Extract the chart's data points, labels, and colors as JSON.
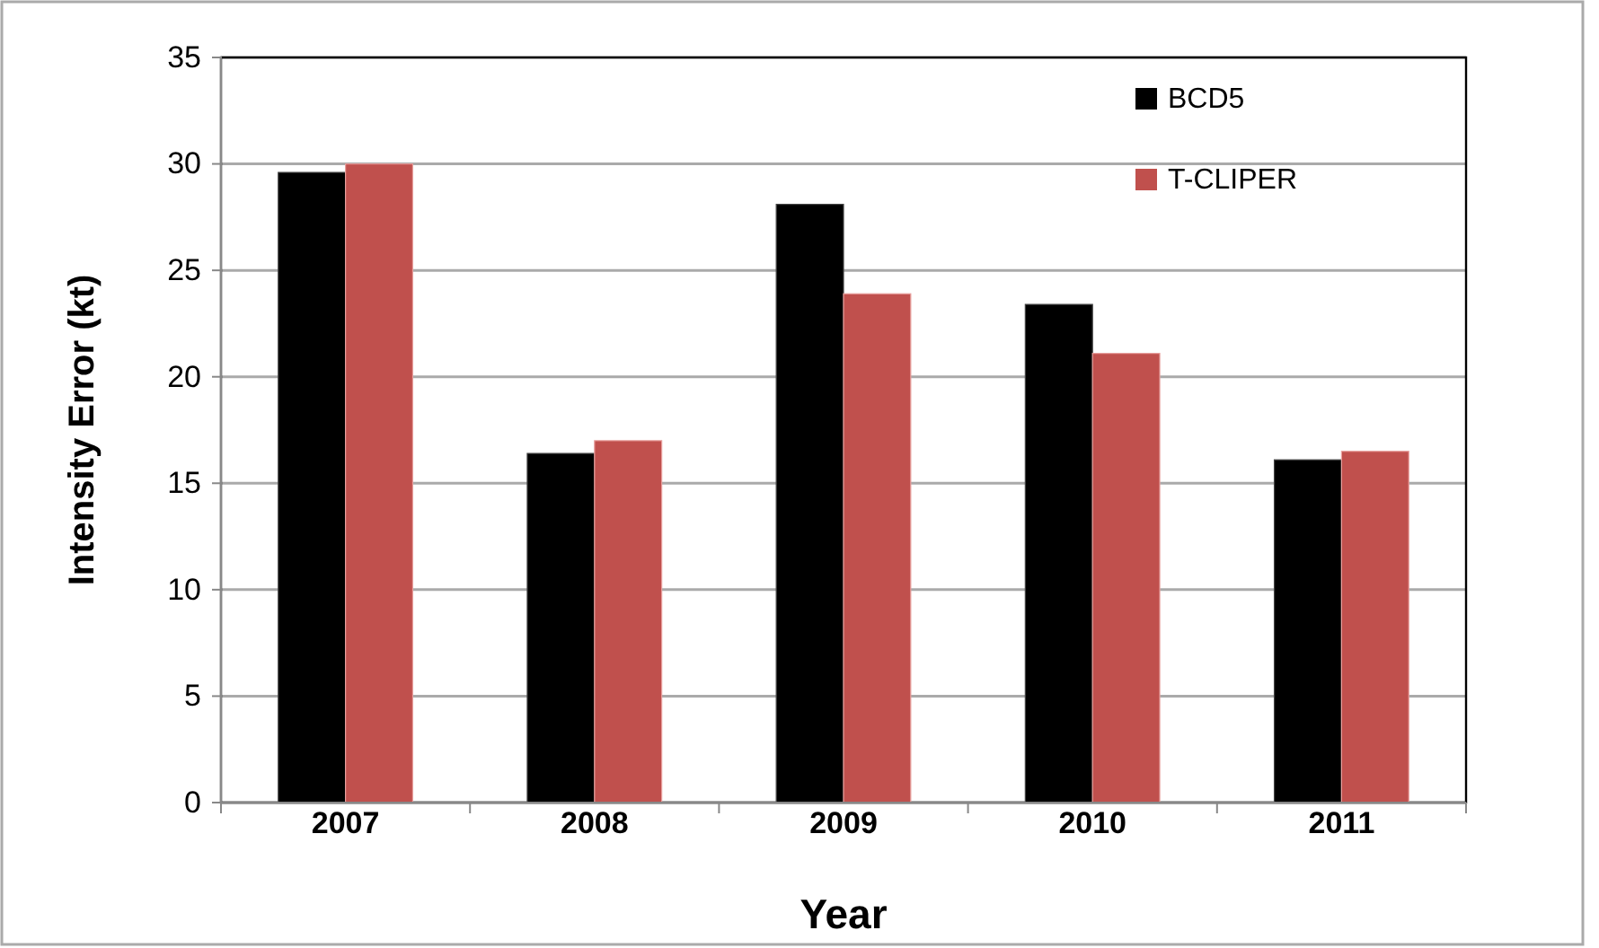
{
  "chart_data": {
    "type": "bar",
    "xlabel": "Year",
    "ylabel": "Intensity Error (kt)",
    "categories": [
      "2007",
      "2008",
      "2009",
      "2010",
      "2011"
    ],
    "series": [
      {
        "name": "BCD5",
        "color": "#000000",
        "values": [
          29.6,
          16.4,
          28.1,
          23.4,
          16.1
        ]
      },
      {
        "name": "T-CLIPER",
        "color": "#c0504d",
        "values": [
          30.0,
          17.0,
          23.9,
          21.1,
          16.5
        ]
      }
    ],
    "ylim": [
      0,
      35
    ],
    "yticks": [
      0,
      5,
      10,
      15,
      20,
      25,
      30,
      35
    ],
    "grid": "y",
    "legend": "top right"
  }
}
